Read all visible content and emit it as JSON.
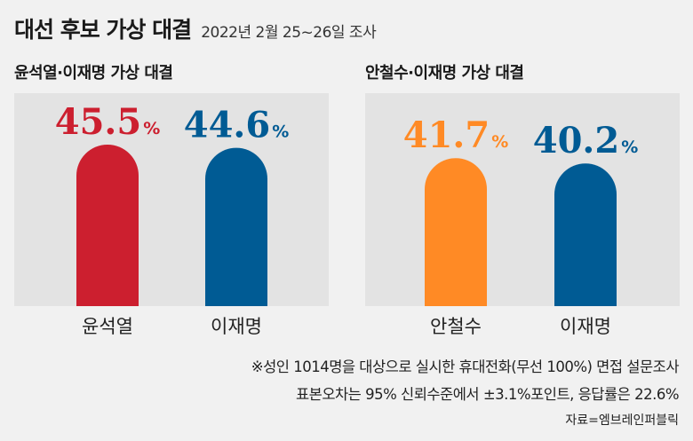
{
  "header": {
    "title": "대선 후보 가상 대결",
    "date": "2022년 2월 25~26일 조사"
  },
  "colors": {
    "yoon": "#cc1f2f",
    "lee": "#005b94",
    "ahn": "#ff8a25",
    "panel": "#e3e3e3",
    "background": "#f1f1f1"
  },
  "chart_data": [
    {
      "type": "bar",
      "title": "윤석열·이재명 가상 대결",
      "categories": [
        "윤석열",
        "이재명"
      ],
      "values": [
        45.5,
        44.6
      ],
      "unit": "%",
      "colors": [
        "#cc1f2f",
        "#005b94"
      ],
      "ylim": [
        0,
        50
      ]
    },
    {
      "type": "bar",
      "title": "안철수·이재명 가상 대결",
      "categories": [
        "안철수",
        "이재명"
      ],
      "values": [
        41.7,
        40.2
      ],
      "unit": "%",
      "colors": [
        "#ff8a25",
        "#005b94"
      ],
      "ylim": [
        0,
        50
      ]
    }
  ],
  "notes": {
    "line1": "※성인 1014명을 대상으로 실시한 휴대전화(무선 100%) 면접 설문조사",
    "line2": "표본오차는 95% 신뢰수준에서 ±3.1%포인트, 응답률은 22.6%",
    "source": "자료=엠브레인퍼블릭"
  }
}
